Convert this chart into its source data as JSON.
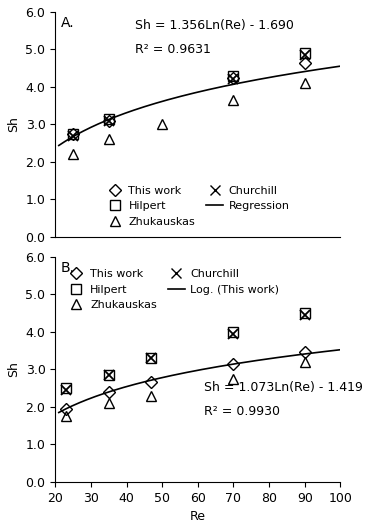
{
  "panel_A": {
    "label": "A.",
    "ylabel": "Sh",
    "ylim": [
      0.0,
      6.0
    ],
    "yticks": [
      0.0,
      1.0,
      2.0,
      3.0,
      4.0,
      5.0,
      6.0
    ],
    "xlim": [
      20,
      100
    ],
    "xticks": [],
    "equation": "Sh = 1.356Ln(Re) - 1.690",
    "r2": "R² = 0.9631",
    "reg_a": 1.356,
    "reg_b": -1.69,
    "series": {
      "this_work": {
        "re": [
          25,
          35,
          70,
          90
        ],
        "sh": [
          2.75,
          3.1,
          4.25,
          4.65
        ]
      },
      "hilpert": {
        "re": [
          25,
          35,
          70,
          90
        ],
        "sh": [
          2.75,
          3.15,
          4.3,
          4.9
        ]
      },
      "zhukauskas": {
        "re": [
          25,
          35,
          50,
          70,
          90
        ],
        "sh": [
          2.2,
          2.6,
          3.0,
          3.65,
          4.1
        ]
      },
      "churchill": {
        "re": [
          25,
          35,
          70,
          90
        ],
        "sh": [
          2.7,
          3.1,
          4.2,
          4.85
        ]
      }
    },
    "legend_entries": [
      "This work",
      "Hilpert",
      "Zhukauskas",
      "Churchill",
      "Regression"
    ]
  },
  "panel_B": {
    "label": "B.",
    "ylabel": "Sh",
    "xlabel": "Re",
    "ylim": [
      0.0,
      6.0
    ],
    "yticks": [
      0.0,
      1.0,
      2.0,
      3.0,
      4.0,
      5.0,
      6.0
    ],
    "xlim": [
      20,
      100
    ],
    "xticks": [
      20,
      30,
      40,
      50,
      60,
      70,
      80,
      90,
      100
    ],
    "equation": "Sh = 1.073Ln(Re) - 1.419",
    "r2": "R² = 0.9930",
    "reg_a": 1.073,
    "reg_b": -1.419,
    "series": {
      "this_work": {
        "re": [
          23,
          35,
          47,
          70,
          90
        ],
        "sh": [
          1.95,
          2.4,
          2.65,
          3.15,
          3.45
        ]
      },
      "hilpert": {
        "re": [
          23,
          35,
          47,
          70,
          90
        ],
        "sh": [
          2.5,
          2.85,
          3.3,
          4.0,
          4.5
        ]
      },
      "zhukauskas": {
        "re": [
          23,
          35,
          47,
          70,
          90
        ],
        "sh": [
          1.75,
          2.1,
          2.3,
          2.75,
          3.2
        ]
      },
      "churchill": {
        "re": [
          23,
          35,
          47,
          70,
          90
        ],
        "sh": [
          2.45,
          2.85,
          3.3,
          3.95,
          4.45
        ]
      }
    },
    "legend_entries": [
      "This work",
      "Hilpert",
      "Zhukauskas",
      "Churchill",
      "Log. (This work)"
    ]
  },
  "marker_size": 7,
  "font_size": 9,
  "tick_font_size": 9
}
